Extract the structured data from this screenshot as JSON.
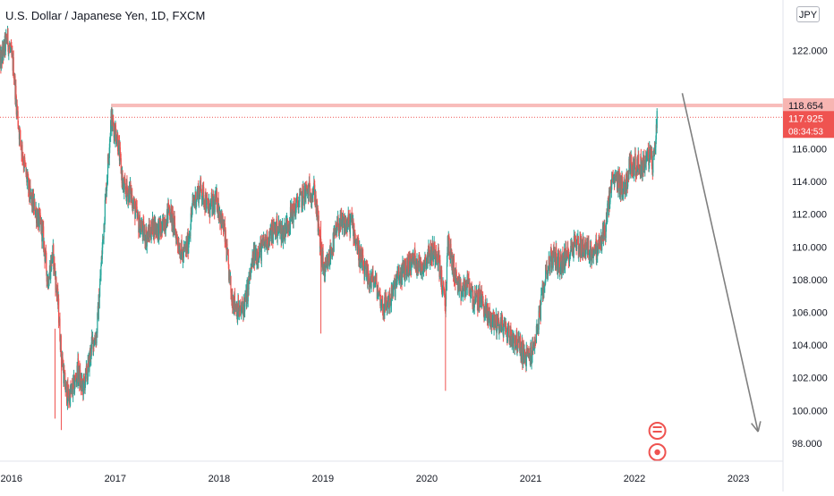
{
  "header": {
    "title": "U.S. Dollar / Japanese Yen, 1D, FXCM",
    "currency": "JPY"
  },
  "badges": {
    "resistance_price": "118.654",
    "last_price": "117.925",
    "countdown": "08:34:53"
  },
  "colors": {
    "up": "#26a69a",
    "down": "#ef5350",
    "resistance": "#f7b5b2",
    "last_price_line": "#ef5350",
    "arrow": "#7f7f7f",
    "axis_text": "#131722",
    "badge_up": "#ef5350"
  },
  "chart_data": {
    "type": "candlestick",
    "title": "U.S. Dollar / Japanese Yen, 1D, FXCM",
    "x_ticks": [
      "2016",
      "2017",
      "2018",
      "2019",
      "2020",
      "2021",
      "2022",
      "2023"
    ],
    "y_ticks": [
      "98.000",
      "100.000",
      "102.000",
      "104.000",
      "106.000",
      "108.000",
      "110.000",
      "112.000",
      "114.000",
      "116.000",
      "122.000"
    ],
    "ylim": [
      96.9,
      125.1
    ],
    "xlim": [
      2015.89,
      2023.43
    ],
    "close_path": [
      [
        2015.89,
        121.2
      ],
      [
        2015.96,
        122.8
      ],
      [
        2016.02,
        121.0
      ],
      [
        2016.05,
        118.6
      ],
      [
        2016.08,
        116.8
      ],
      [
        2016.13,
        114.8
      ],
      [
        2016.18,
        113.0
      ],
      [
        2016.23,
        112.3
      ],
      [
        2016.3,
        110.9
      ],
      [
        2016.35,
        107.9
      ],
      [
        2016.4,
        109.6
      ],
      [
        2016.45,
        106.4
      ],
      [
        2016.48,
        103.5
      ],
      [
        2016.52,
        101.3
      ],
      [
        2016.55,
        100.8
      ],
      [
        2016.6,
        101.4
      ],
      [
        2016.64,
        102.5
      ],
      [
        2016.68,
        101.3
      ],
      [
        2016.73,
        102.3
      ],
      [
        2016.78,
        104.2
      ],
      [
        2016.82,
        104.6
      ],
      [
        2016.86,
        108.4
      ],
      [
        2016.9,
        112.4
      ],
      [
        2016.96,
        117.9
      ],
      [
        2017.02,
        116.7
      ],
      [
        2017.08,
        113.5
      ],
      [
        2017.15,
        113.3
      ],
      [
        2017.22,
        111.5
      ],
      [
        2017.3,
        110.6
      ],
      [
        2017.37,
        111.3
      ],
      [
        2017.45,
        111.0
      ],
      [
        2017.52,
        112.4
      ],
      [
        2017.6,
        110.4
      ],
      [
        2017.65,
        109.4
      ],
      [
        2017.7,
        110.2
      ],
      [
        2017.75,
        112.7
      ],
      [
        2017.82,
        113.6
      ],
      [
        2017.9,
        112.3
      ],
      [
        2017.98,
        112.8
      ],
      [
        2018.05,
        110.9
      ],
      [
        2018.12,
        107.0
      ],
      [
        2018.2,
        105.9
      ],
      [
        2018.26,
        106.8
      ],
      [
        2018.33,
        109.4
      ],
      [
        2018.4,
        109.8
      ],
      [
        2018.48,
        110.6
      ],
      [
        2018.55,
        111.2
      ],
      [
        2018.62,
        110.9
      ],
      [
        2018.7,
        112.0
      ],
      [
        2018.77,
        112.8
      ],
      [
        2018.85,
        113.4
      ],
      [
        2018.92,
        113.4
      ],
      [
        2018.98,
        109.7
      ],
      [
        2019.02,
        108.3
      ],
      [
        2019.08,
        109.8
      ],
      [
        2019.15,
        111.4
      ],
      [
        2019.2,
        111.3
      ],
      [
        2019.28,
        111.5
      ],
      [
        2019.35,
        109.5
      ],
      [
        2019.42,
        108.1
      ],
      [
        2019.5,
        107.9
      ],
      [
        2019.58,
        106.3
      ],
      [
        2019.65,
        106.8
      ],
      [
        2019.72,
        108.1
      ],
      [
        2019.8,
        108.7
      ],
      [
        2019.88,
        109.3
      ],
      [
        2019.95,
        108.8
      ],
      [
        2020.02,
        109.6
      ],
      [
        2020.1,
        109.8
      ],
      [
        2020.18,
        106.2
      ],
      [
        2020.2,
        110.4
      ],
      [
        2020.25,
        108.9
      ],
      [
        2020.32,
        107.1
      ],
      [
        2020.4,
        107.8
      ],
      [
        2020.46,
        106.6
      ],
      [
        2020.52,
        106.9
      ],
      [
        2020.58,
        105.8
      ],
      [
        2020.65,
        105.4
      ],
      [
        2020.72,
        105.3
      ],
      [
        2020.8,
        104.6
      ],
      [
        2020.88,
        104.1
      ],
      [
        2020.95,
        103.2
      ],
      [
        2021.02,
        103.6
      ],
      [
        2021.08,
        105.6
      ],
      [
        2021.15,
        108.6
      ],
      [
        2021.22,
        109.5
      ],
      [
        2021.28,
        108.9
      ],
      [
        2021.35,
        109.4
      ],
      [
        2021.42,
        110.3
      ],
      [
        2021.5,
        110.0
      ],
      [
        2021.58,
        109.7
      ],
      [
        2021.65,
        109.9
      ],
      [
        2021.72,
        111.1
      ],
      [
        2021.78,
        113.9
      ],
      [
        2021.84,
        114.1
      ],
      [
        2021.9,
        113.5
      ],
      [
        2021.96,
        115.1
      ],
      [
        2022.02,
        115.0
      ],
      [
        2022.08,
        115.0
      ],
      [
        2022.14,
        115.6
      ],
      [
        2022.18,
        115.1
      ],
      [
        2022.22,
        117.9
      ]
    ],
    "price_lines": {
      "resistance": 118.654,
      "last": 117.925
    },
    "projection_arrow": {
      "from": [
        2022.46,
        119.4
      ],
      "to": [
        2023.19,
        98.7
      ]
    },
    "legend": "none",
    "grid": false
  }
}
